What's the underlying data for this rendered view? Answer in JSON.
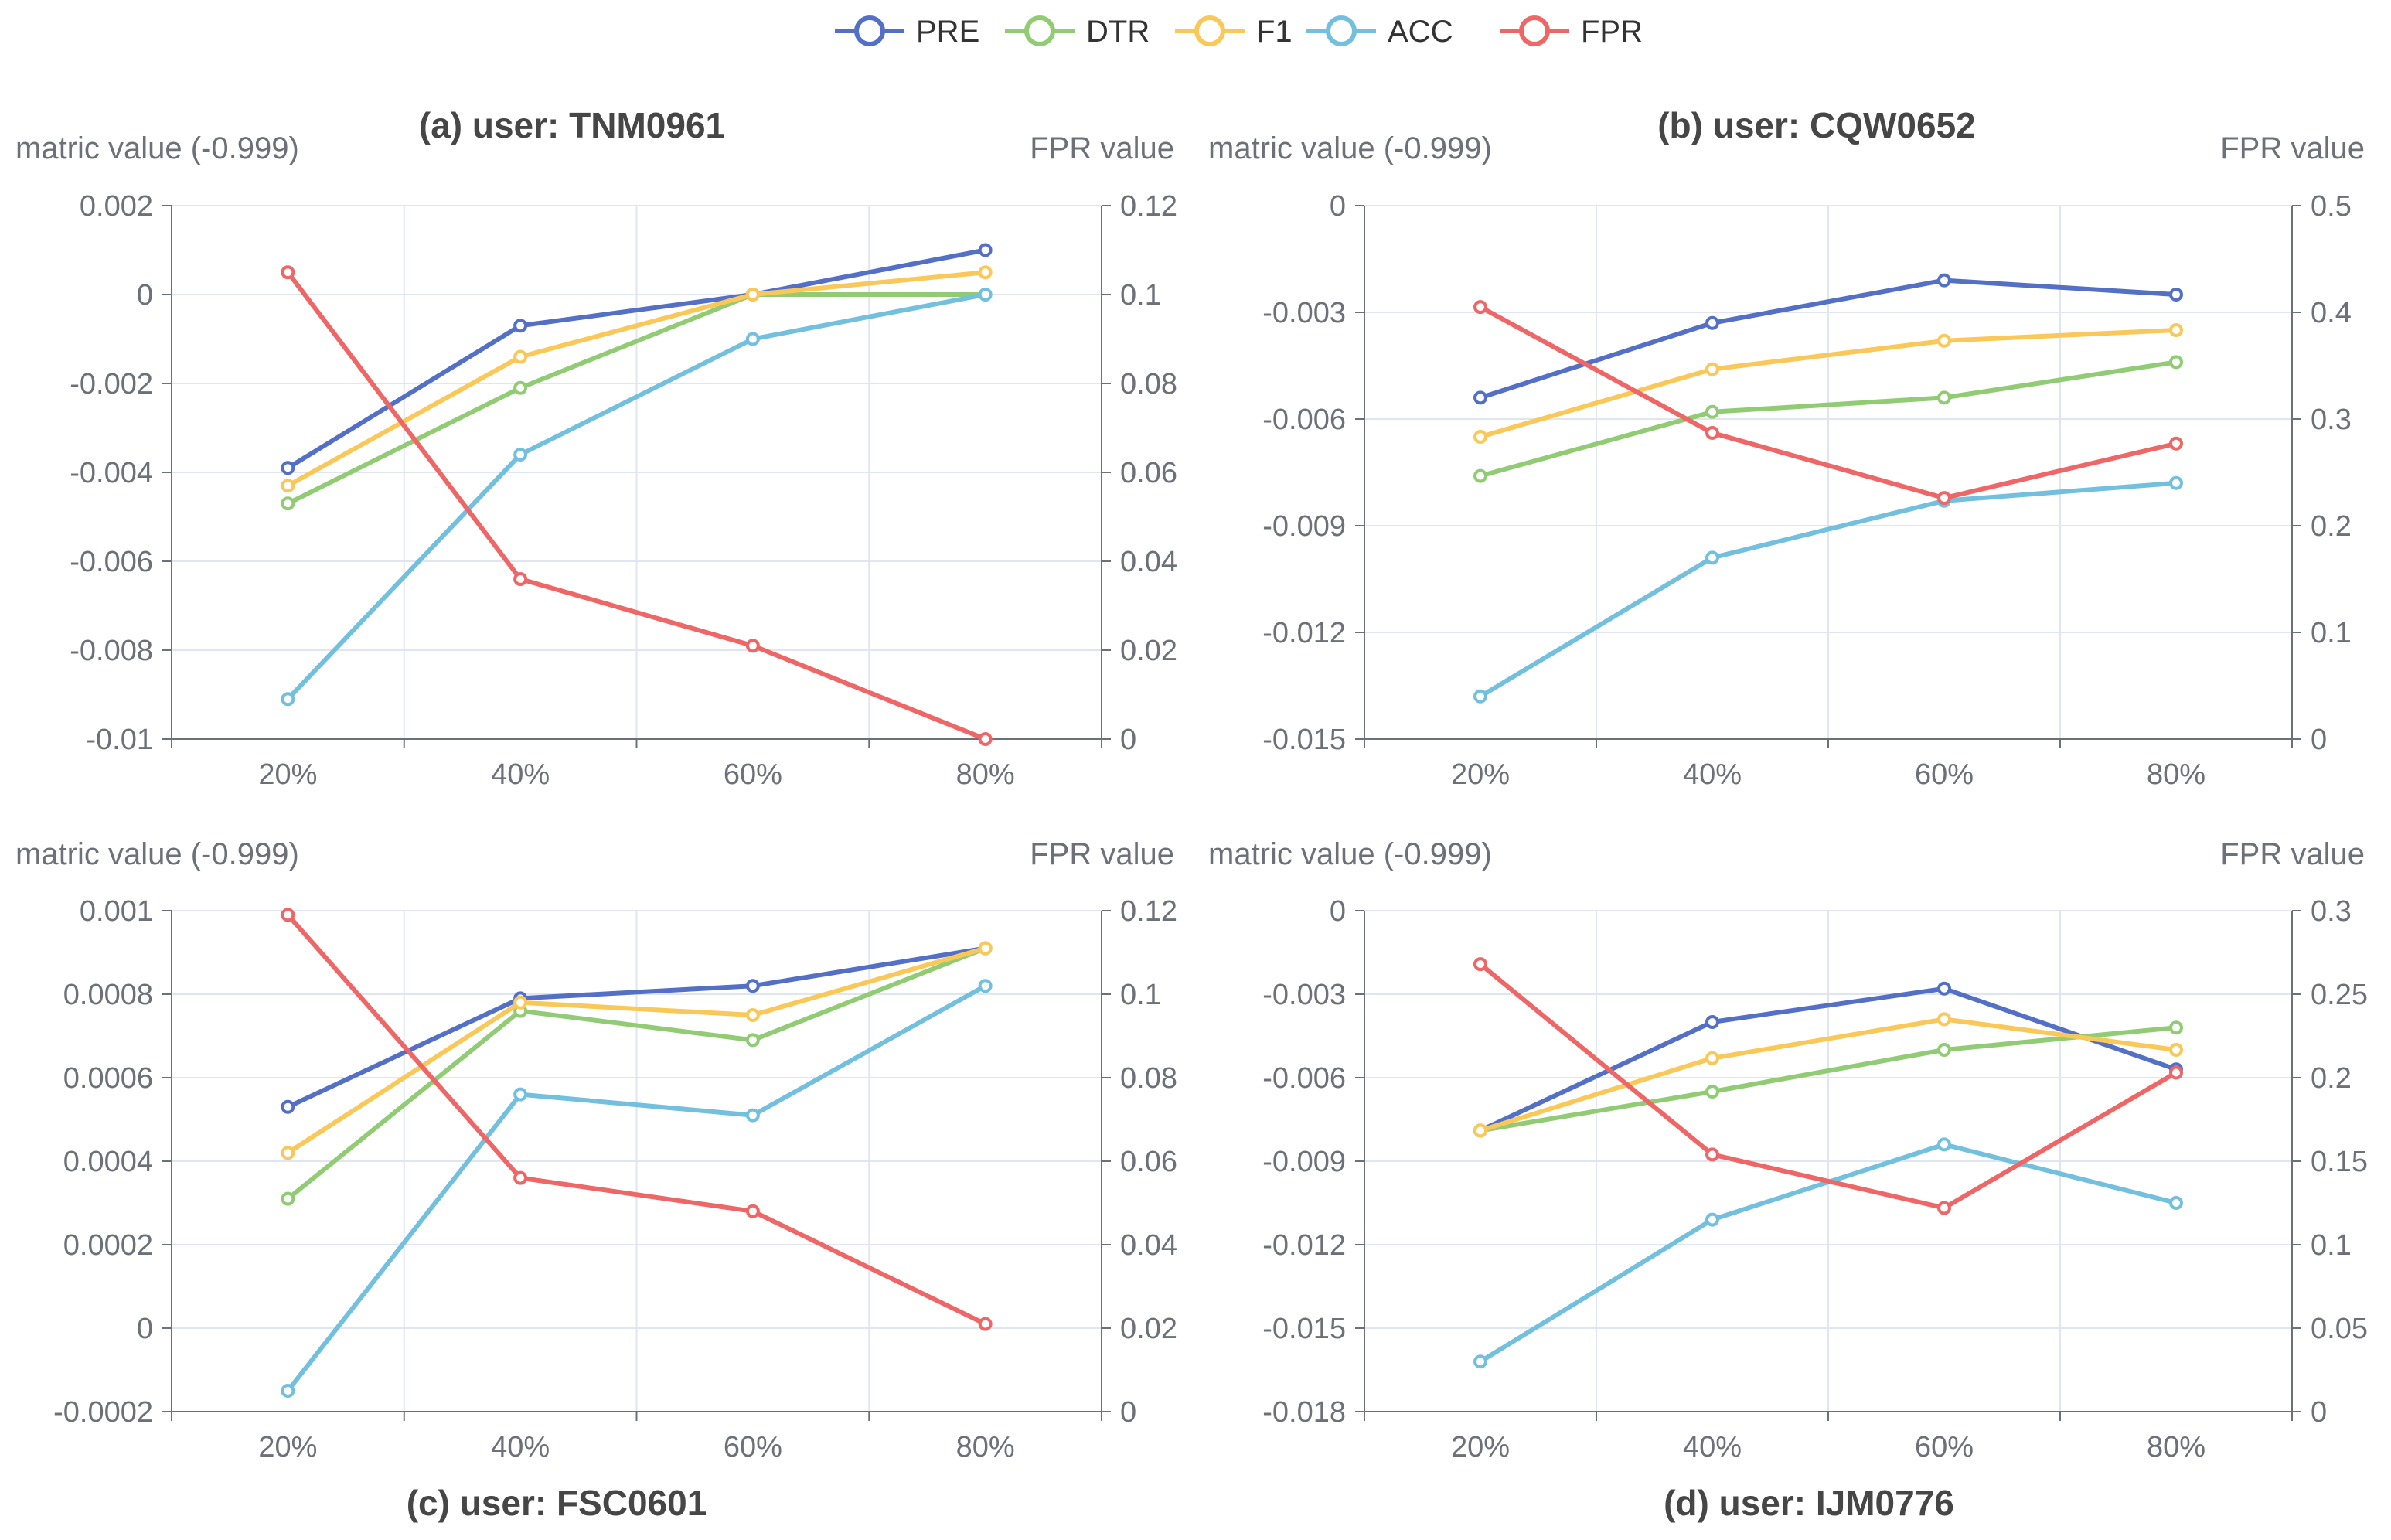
{
  "legend": [
    {
      "name": "PRE",
      "color": "#5470c6"
    },
    {
      "name": "DTR",
      "color": "#91cc75"
    },
    {
      "name": "F1",
      "color": "#fac858"
    },
    {
      "name": "ACC",
      "color": "#73c0de"
    },
    {
      "name": "FPR",
      "color": "#ee6666"
    }
  ],
  "chart_data": [
    {
      "type": "line",
      "title": "(a) user: TNM0961",
      "ylabel": "matric value (-0.999)",
      "y2label": "FPR value",
      "categories": [
        "20%",
        "40%",
        "60%",
        "80%"
      ],
      "ylim": [
        -0.01,
        0.002
      ],
      "yticks": [
        "0.002",
        "0",
        "-0.002",
        "-0.004",
        "-0.006",
        "-0.008",
        "-0.01"
      ],
      "y2lim": [
        0,
        0.12
      ],
      "y2ticks": [
        "0.12",
        "0.1",
        "0.08",
        "0.06",
        "0.04",
        "0.02",
        "0"
      ],
      "series": [
        {
          "name": "PRE",
          "axis": "left",
          "values": [
            -0.0039,
            -0.0007,
            0.0,
            0.001
          ]
        },
        {
          "name": "DTR",
          "axis": "left",
          "values": [
            -0.0047,
            -0.0021,
            0.0,
            0.0
          ]
        },
        {
          "name": "F1",
          "axis": "left",
          "values": [
            -0.0043,
            -0.0014,
            0.0,
            0.0005
          ]
        },
        {
          "name": "ACC",
          "axis": "left",
          "values": [
            -0.0091,
            -0.0036,
            -0.001,
            0.0
          ]
        },
        {
          "name": "FPR",
          "axis": "right",
          "values": [
            0.105,
            0.036,
            0.021,
            0.0
          ]
        }
      ]
    },
    {
      "type": "line",
      "title": "(b) user: CQW0652",
      "ylabel": "matric value (-0.999)",
      "y2label": "FPR value",
      "categories": [
        "20%",
        "40%",
        "60%",
        "80%"
      ],
      "ylim": [
        -0.015,
        0
      ],
      "yticks": [
        "0",
        "-0.003",
        "-0.006",
        "-0.009",
        "-0.012",
        "-0.015"
      ],
      "y2lim": [
        0,
        0.5
      ],
      "y2ticks": [
        "0.5",
        "0.4",
        "0.3",
        "0.2",
        "0.1",
        "0"
      ],
      "series": [
        {
          "name": "PRE",
          "axis": "left",
          "values": [
            -0.0054,
            -0.0033,
            -0.0021,
            -0.0025
          ]
        },
        {
          "name": "DTR",
          "axis": "left",
          "values": [
            -0.0076,
            -0.0058,
            -0.0054,
            -0.0044
          ]
        },
        {
          "name": "F1",
          "axis": "left",
          "values": [
            -0.0065,
            -0.0046,
            -0.0038,
            -0.0035
          ]
        },
        {
          "name": "ACC",
          "axis": "left",
          "values": [
            -0.0138,
            -0.0099,
            -0.0083,
            -0.0078
          ]
        },
        {
          "name": "FPR",
          "axis": "right",
          "values": [
            0.405,
            0.287,
            0.226,
            0.277
          ]
        }
      ]
    },
    {
      "type": "line",
      "title": "(c) user: FSC0601",
      "ylabel": "matric value (-0.999)",
      "y2label": "FPR value",
      "categories": [
        "20%",
        "40%",
        "60%",
        "80%"
      ],
      "ylim": [
        -0.0002,
        0.001
      ],
      "yticks": [
        "0.001",
        "0.0008",
        "0.0006",
        "0.0004",
        "0.0002",
        "0",
        "-0.0002"
      ],
      "y2lim": [
        0,
        0.12
      ],
      "y2ticks": [
        "0.12",
        "0.1",
        "0.08",
        "0.06",
        "0.04",
        "0.02",
        "0"
      ],
      "series": [
        {
          "name": "PRE",
          "axis": "left",
          "values": [
            0.00053,
            0.00079,
            0.00082,
            0.00091
          ]
        },
        {
          "name": "DTR",
          "axis": "left",
          "values": [
            0.00031,
            0.00076,
            0.00069,
            0.00091
          ]
        },
        {
          "name": "F1",
          "axis": "left",
          "values": [
            0.00042,
            0.00078,
            0.00075,
            0.00091
          ]
        },
        {
          "name": "ACC",
          "axis": "left",
          "values": [
            -0.00015,
            0.00056,
            0.00051,
            0.00082
          ]
        },
        {
          "name": "FPR",
          "axis": "right",
          "values": [
            0.119,
            0.056,
            0.048,
            0.021
          ]
        }
      ]
    },
    {
      "type": "line",
      "title": "(d) user: IJM0776",
      "ylabel": "matric value (-0.999)",
      "y2label": "FPR value",
      "categories": [
        "20%",
        "40%",
        "60%",
        "80%"
      ],
      "ylim": [
        -0.018,
        0
      ],
      "yticks": [
        "0",
        "-0.003",
        "-0.006",
        "-0.009",
        "-0.012",
        "-0.015",
        "-0.018"
      ],
      "y2lim": [
        0,
        0.3
      ],
      "y2ticks": [
        "0.3",
        "0.25",
        "0.2",
        "0.15",
        "0.1",
        "0.05",
        "0"
      ],
      "series": [
        {
          "name": "PRE",
          "axis": "left",
          "values": [
            -0.0079,
            -0.004,
            -0.0028,
            -0.0057
          ]
        },
        {
          "name": "DTR",
          "axis": "left",
          "values": [
            -0.0079,
            -0.0065,
            -0.005,
            -0.0042
          ]
        },
        {
          "name": "F1",
          "axis": "left",
          "values": [
            -0.0079,
            -0.0053,
            -0.0039,
            -0.005
          ]
        },
        {
          "name": "ACC",
          "axis": "left",
          "values": [
            -0.0162,
            -0.0111,
            -0.0084,
            -0.0105
          ]
        },
        {
          "name": "FPR",
          "axis": "right",
          "values": [
            0.268,
            0.154,
            0.122,
            0.203
          ]
        }
      ]
    }
  ]
}
